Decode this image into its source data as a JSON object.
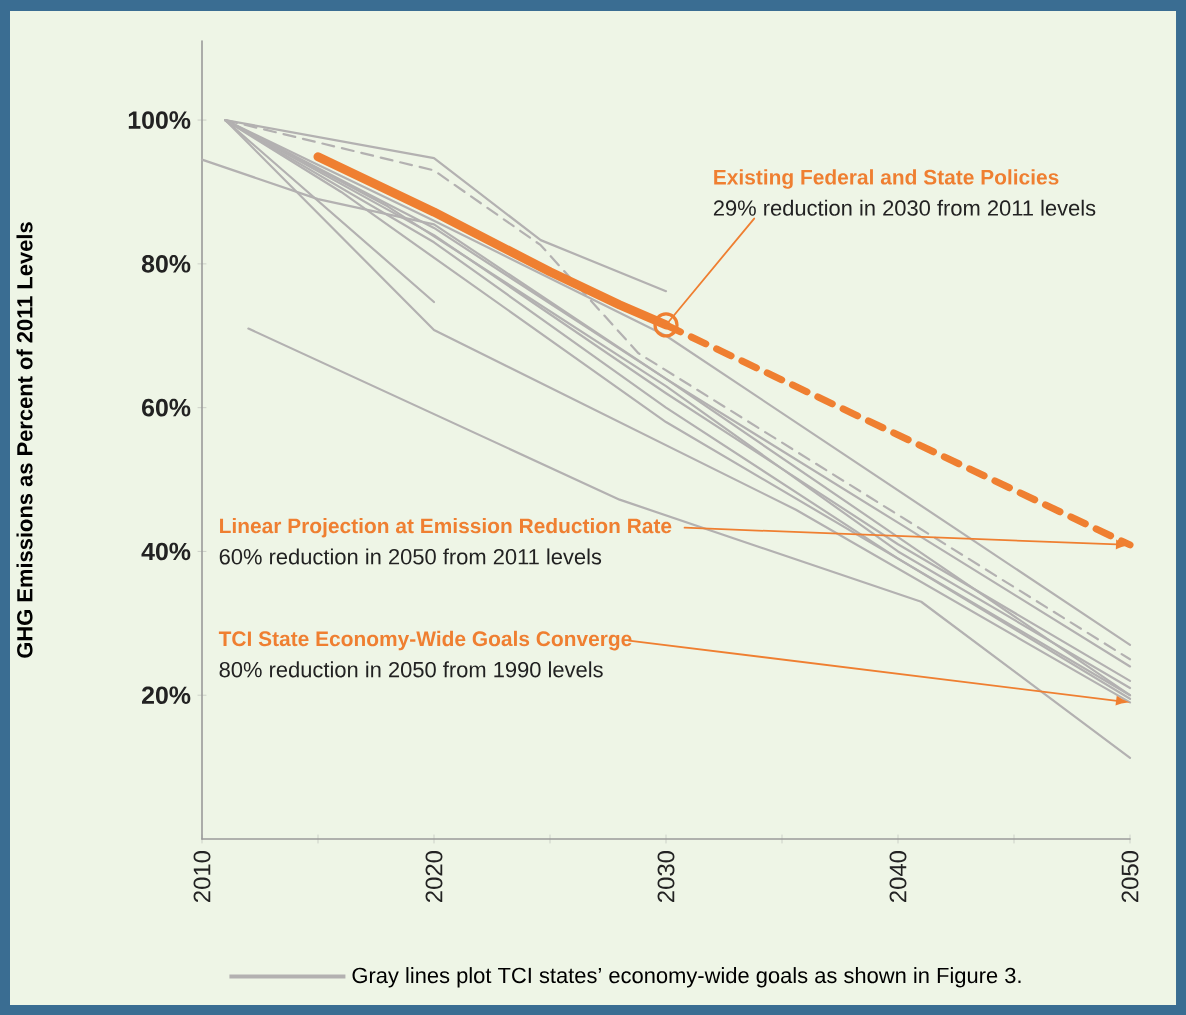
{
  "chart_data": {
    "type": "line",
    "ylabel": "GHG Emissions as Percent of 2011 Levels",
    "xlim": [
      2010,
      2050
    ],
    "ylim": [
      0,
      111
    ],
    "xticks": [
      2010,
      {
        "value": 2015,
        "label": null
      },
      2020,
      {
        "value": 2025,
        "label": null
      },
      2030,
      {
        "value": 2035,
        "label": null
      },
      2040,
      {
        "value": 2045,
        "label": null
      },
      2050
    ],
    "yticks": [
      {
        "value": 20,
        "label": "20%"
      },
      {
        "value": 40,
        "label": "40%"
      },
      {
        "value": 60,
        "label": "60%"
      },
      {
        "value": 80,
        "label": "80%"
      },
      {
        "value": 100,
        "label": "100%"
      }
    ],
    "legend": "bottom",
    "series": [
      {
        "name": "Gray lines plot TCI states’ economy-wide goals as shown in Figure 3.",
        "color": "#b3b1b1",
        "x": [
          2011,
          2020,
          2024.6,
          2030
        ],
        "values": [
          100,
          94.7,
          83.3,
          76.2
        ]
      },
      {
        "color": "#b3b1b1",
        "line_style": "dashed",
        "x": [
          2011,
          2020,
          2024.6,
          2028.8,
          2050
        ],
        "values": [
          100,
          93,
          82.6,
          67.6,
          25
        ]
      },
      {
        "color": "#b3b1b1",
        "x": [
          2010,
          2015,
          2020,
          2030,
          2040,
          2050
        ],
        "values": [
          94.5,
          89,
          85.5,
          64,
          42,
          20
        ]
      },
      {
        "color": "#b3b1b1",
        "x": [
          2011,
          2020
        ],
        "values": [
          100,
          74.7
        ]
      },
      {
        "color": "#b3b1b1",
        "x": [
          2011,
          2020,
          2035.6,
          2050
        ],
        "values": [
          100,
          70.8,
          45.8,
          19
        ]
      },
      {
        "color": "#b3b1b1",
        "x": [
          2012,
          2028,
          2041,
          2050
        ],
        "values": [
          71,
          47.2,
          33,
          11.3
        ]
      },
      {
        "color": "#b3b1b1",
        "x": [
          2011,
          2020,
          2030,
          2050
        ],
        "values": [
          100,
          86,
          70,
          27
        ]
      },
      {
        "color": "#b3b1b1",
        "x": [
          2011,
          2020,
          2030,
          2040,
          2050
        ],
        "values": [
          100,
          85,
          64,
          44,
          24
        ]
      },
      {
        "color": "#b3b1b1",
        "x": [
          2011,
          2020,
          2030,
          2040,
          2050
        ],
        "values": [
          100,
          84,
          62,
          41,
          22
        ]
      },
      {
        "color": "#b3b1b1",
        "x": [
          2011,
          2018,
          2030,
          2040,
          2050
        ],
        "values": [
          100,
          88,
          63,
          40,
          21
        ]
      },
      {
        "color": "#b3b1b1",
        "x": [
          2011,
          2020,
          2030,
          2040,
          2050
        ],
        "values": [
          100,
          83,
          60,
          39,
          19.5
        ]
      },
      {
        "color": "#b3b1b1",
        "x": [
          2011,
          2016,
          2030,
          2050
        ],
        "values": [
          100,
          90,
          58,
          20
        ]
      },
      {
        "color": "#ef7f31",
        "x": [
          2015,
          2020,
          2025,
          2028,
          2030
        ],
        "values": [
          94.9,
          87.2,
          78.9,
          74.3,
          71.5
        ]
      },
      {
        "color": "#ef7f31",
        "line_style": "dashed",
        "x": [
          2030,
          2050
        ],
        "values": [
          71.5,
          40.9
        ]
      },
      {
        "color": "#ef7f31",
        "type": "scatter",
        "marker": "circle",
        "x": [
          2030
        ],
        "values": [
          71.5
        ]
      }
    ],
    "annotations": [
      "Existing Federal and State Policies",
      {
        "text": "29% reduction in 2030 from 2011 levels",
        "x": 2030,
        "y": 71.5
      },
      "Linear Projection at Emission Reduction Rate",
      "60% reduction in 2050 from 2011 levels",
      "TCI State Economy-Wide Goals Converge",
      "80% reduction in 2050 from 1990 levels"
    ]
  }
}
